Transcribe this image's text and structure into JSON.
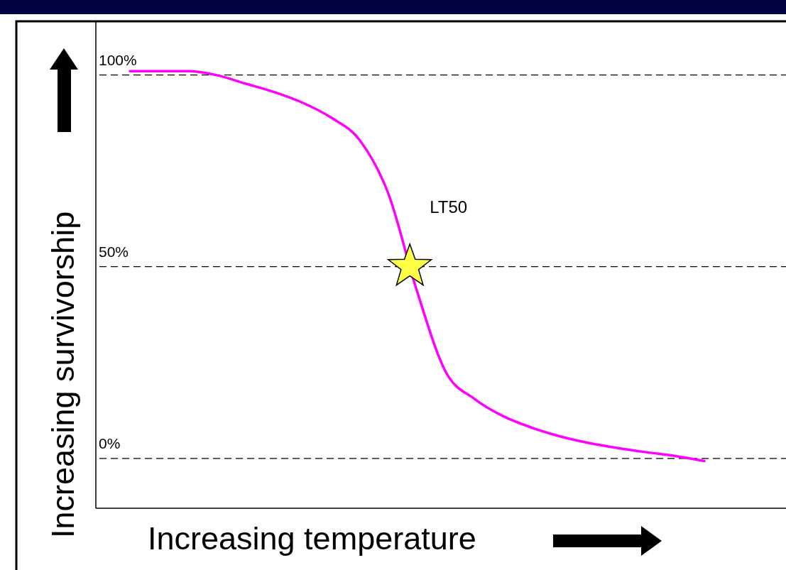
{
  "chart_data": {
    "type": "line",
    "xlabel": "Increasing temperature",
    "ylabel": "Increasing survivorship",
    "categories": [
      null,
      null,
      null,
      null,
      null,
      null,
      null,
      null,
      null,
      null,
      null,
      null,
      null,
      null,
      null,
      null,
      null,
      null,
      null,
      null,
      null
    ],
    "series": [
      {
        "color": "#ff00ff",
        "values": [
          101,
          101,
          101,
          100,
          97.8,
          95.6,
          92.8,
          88.9,
          83,
          69,
          43.5,
          22.5,
          15.5,
          11,
          8,
          5.7,
          4,
          2.7,
          1.6,
          0.6,
          -0.7
        ]
      }
    ],
    "ylim": [
      -13,
      114
    ],
    "yticks": [
      {
        "value": 0,
        "label": "0%"
      },
      {
        "value": 50,
        "label": "50%"
      },
      {
        "value": 100,
        "label": "100%"
      }
    ],
    "grid": "y",
    "line_style": "solid",
    "marker": "none",
    "annotations": [
      "LT50"
    ]
  }
}
